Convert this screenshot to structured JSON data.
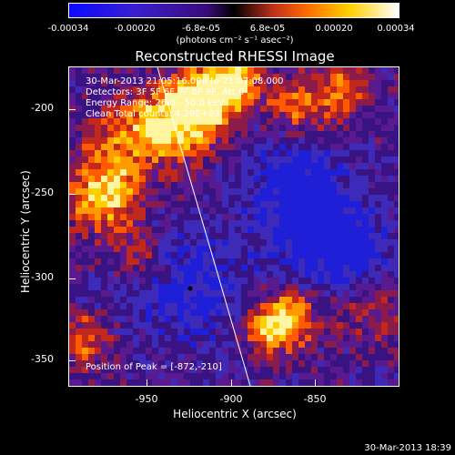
{
  "colorbar": {
    "ticks": [
      "-0.00034",
      "-0.00020",
      "-6.8e-05",
      "6.8e-05",
      "0.00020",
      "0.00034"
    ],
    "units": "(photons cm⁻² s⁻¹ asec⁻²)"
  },
  "plot": {
    "title": "Reconstructed RHESSI Image",
    "info_lines": [
      "30-Mar-2013 21:05:16.000 to 21:07:08.000",
      "Detectors: 3F 5F 6F 7F 8F 9F, Att 0",
      "Energy Range: 26.0 - 50.0 keV",
      "Clean     Total counts: 4.29E+03"
    ],
    "peak_label": "Position of Peak = [-872,-210]",
    "y_ticks": [
      "-200",
      "-250",
      "-300",
      "-350"
    ],
    "x_ticks": [
      "-950",
      "-900",
      "-850"
    ],
    "ylabel": "Heliocentric Y (arcsec)",
    "xlabel": "Heliocentric X (arcsec)"
  },
  "timestamp": "30-Mar-2013 18:39"
}
